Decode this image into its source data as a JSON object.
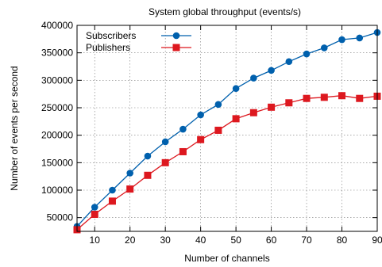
{
  "chart_data": {
    "type": "line",
    "title": "System global throughput (events/s)",
    "xlabel": "Number of channels",
    "ylabel": "Number of events per second",
    "xlim": [
      5,
      90
    ],
    "ylim": [
      25000,
      400000
    ],
    "x_ticks": [
      10,
      20,
      30,
      40,
      50,
      60,
      70,
      80,
      90
    ],
    "y_ticks": [
      50000,
      100000,
      150000,
      200000,
      250000,
      300000,
      350000,
      400000
    ],
    "grid": true,
    "legend_position": "top-left",
    "x": [
      5,
      10,
      15,
      20,
      25,
      30,
      35,
      40,
      45,
      50,
      55,
      60,
      65,
      70,
      75,
      80,
      85,
      90
    ],
    "series": [
      {
        "name": "Subscribers",
        "color": "#0060ad",
        "marker": "circle",
        "values": [
          34000,
          69000,
          100000,
          131000,
          162000,
          188000,
          211000,
          237000,
          256000,
          285000,
          304000,
          318000,
          334000,
          348000,
          359000,
          374000,
          377000,
          387000
        ]
      },
      {
        "name": "Publishers",
        "color": "#dd181f",
        "marker": "square",
        "values": [
          28000,
          56000,
          80000,
          102000,
          127000,
          150000,
          170000,
          192000,
          209000,
          230000,
          241000,
          251000,
          259000,
          267000,
          269000,
          272000,
          267000,
          271000
        ]
      }
    ]
  }
}
